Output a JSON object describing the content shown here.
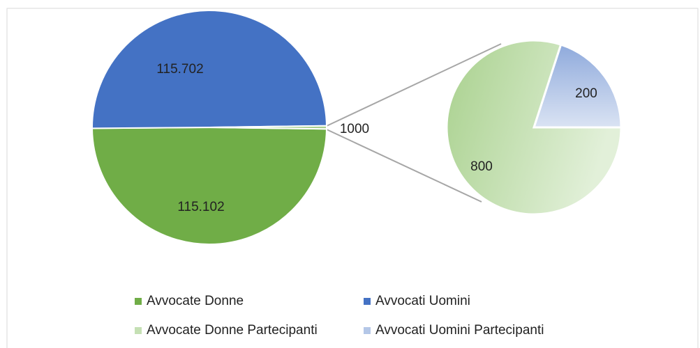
{
  "chart_data": {
    "type": "pie",
    "categories": [
      "Avvocate Donne",
      "Avvocati Uomini",
      null
    ],
    "values": [
      115102,
      115702,
      1000
    ],
    "value_labels": [
      "115.102",
      "115.702",
      null
    ],
    "colors": [
      "#70ad47",
      "#4472c4",
      "#a9cf8f"
    ],
    "secondary": {
      "categories": [
        "Avvocate Donne Partecipanti",
        "Avvocati Uomini Partecipanti"
      ],
      "values": [
        800,
        200
      ],
      "colors": [
        "#c5e0b4",
        "#b4c7e7"
      ]
    }
  }
}
